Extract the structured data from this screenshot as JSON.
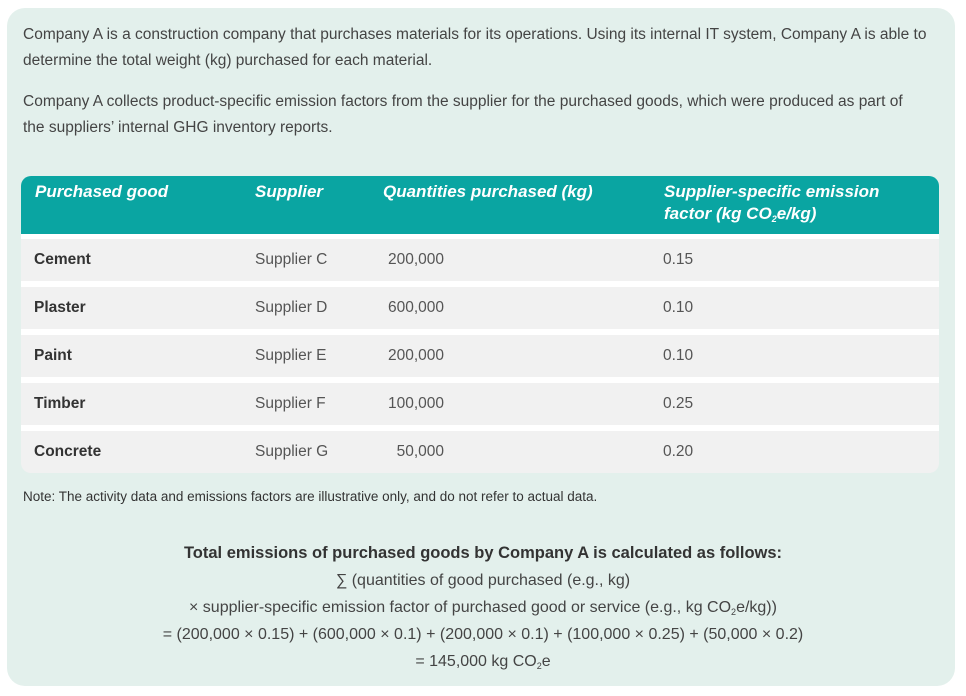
{
  "intro": {
    "p1": "Company A is a construction company that purchases materials for its operations. Using its internal IT system, Company A is able to determine the total weight (kg) purchased for each material.",
    "p2": "Company A collects product-specific emission factors from the supplier for the purchased goods, which were produced as part of the suppliers’ internal GHG inventory reports."
  },
  "table": {
    "headers": {
      "good": "Purchased good",
      "supplier": "Supplier",
      "quantity": "Quantities purchased (kg)",
      "ef_line1": "Supplier-specific emission",
      "ef_line2_pre": "factor (kg CO",
      "ef_line2_sub": "2",
      "ef_line2_post": "e/kg)"
    },
    "rows": [
      {
        "good": "Cement",
        "supplier": "Supplier C",
        "quantity": "200,000",
        "ef": "0.15"
      },
      {
        "good": "Plaster",
        "supplier": "Supplier D",
        "quantity": "600,000",
        "ef": "0.10"
      },
      {
        "good": "Paint",
        "supplier": "Supplier E",
        "quantity": "200,000",
        "ef": "0.10"
      },
      {
        "good": "Timber",
        "supplier": "Supplier F",
        "quantity": "100,000",
        "ef": "0.25"
      },
      {
        "good": "Concrete",
        "supplier": "Supplier G",
        "quantity": "50,000",
        "ef": "0.20"
      }
    ]
  },
  "note": "Note: The activity data and emissions factors are illustrative only, and do not refer to actual data.",
  "calc": {
    "title": "Total emissions of purchased goods by Company A is calculated as follows:",
    "line1": "∑ (quantities of good purchased (e.g., kg)",
    "line2_pre": "× supplier-specific emission factor of purchased good or service (e.g., kg CO",
    "line2_sub": "2",
    "line2_post": "e/kg))",
    "line3": "= (200,000 × 0.15) + (600,000 × 0.1) + (200,000 × 0.1) + (100,000 × 0.25) + (50,000 × 0.2)",
    "line4_pre": "= 145,000 kg CO",
    "line4_sub": "2",
    "line4_post": "e"
  }
}
